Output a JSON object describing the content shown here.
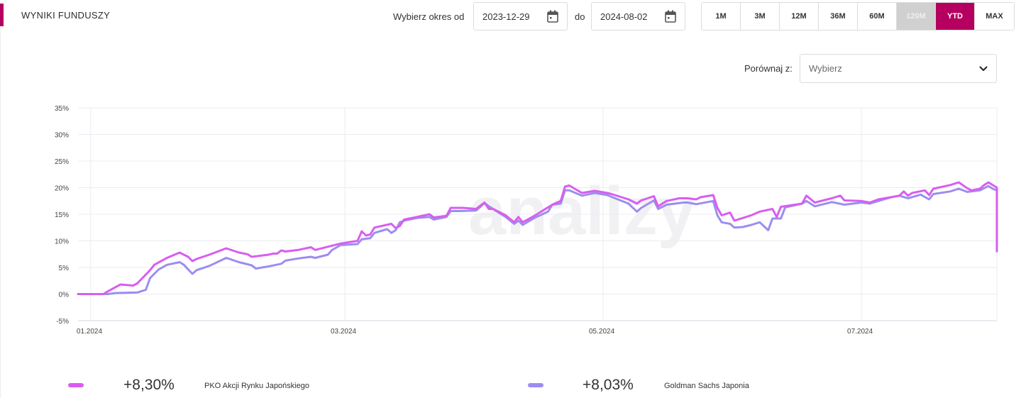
{
  "header": {
    "title": "WYNIKI FUNDUSZY",
    "from_label": "Wybierz okres od",
    "from_value": "2023-12-29",
    "to_label": "do",
    "to_value": "2024-08-02"
  },
  "periods": [
    {
      "label": "1M",
      "state": "normal"
    },
    {
      "label": "3M",
      "state": "normal"
    },
    {
      "label": "12M",
      "state": "normal"
    },
    {
      "label": "36M",
      "state": "normal"
    },
    {
      "label": "60M",
      "state": "normal"
    },
    {
      "label": "120M",
      "state": "disabled"
    },
    {
      "label": "YTD",
      "state": "active"
    },
    {
      "label": "MAX",
      "state": "normal"
    }
  ],
  "compare": {
    "label": "Porównaj z:",
    "placeholder": "Wybierz"
  },
  "watermark": "analizy",
  "colors": {
    "accent": "#b5005f",
    "series1": "#d85ef0",
    "series2": "#9b8ef0",
    "grid": "#ececf2",
    "axis": "#d5d5e0"
  },
  "legend": [
    {
      "value": "+8,30%",
      "name": "PKO Akcji Rynku Japońskiego"
    },
    {
      "value": "+8,03%",
      "name": "Goldman Sachs Japonia"
    }
  ],
  "chart_data": {
    "type": "line",
    "xlim": [
      "2023-12-29",
      "2024-08-02"
    ],
    "ylim": [
      -5,
      35
    ],
    "yticks": [
      -5,
      0,
      5,
      10,
      15,
      20,
      25,
      30,
      35
    ],
    "yticklabels": [
      "-5%",
      "0%",
      "5%",
      "10%",
      "15%",
      "20%",
      "25%",
      "30%",
      "35%"
    ],
    "xticks": [
      "2024-01-01",
      "2024-03-01",
      "2024-05-01",
      "2024-07-01"
    ],
    "xticklabels": [
      "01.2024",
      "03.2024",
      "05.2024",
      "07.2024"
    ],
    "grid": true,
    "legend_position": "bottom",
    "series": [
      {
        "name": "PKO Akcji Rynku Japońskiego",
        "color": "#d85ef0",
        "points": [
          [
            "2023-12-29",
            0.0
          ],
          [
            "2024-01-04",
            0.0
          ],
          [
            "2024-01-05",
            0.5
          ],
          [
            "2024-01-08",
            1.8
          ],
          [
            "2024-01-11",
            1.6
          ],
          [
            "2024-01-12",
            2.0
          ],
          [
            "2024-01-15",
            4.5
          ],
          [
            "2024-01-16",
            5.5
          ],
          [
            "2024-01-19",
            6.8
          ],
          [
            "2024-01-22",
            7.8
          ],
          [
            "2024-01-24",
            7.0
          ],
          [
            "2024-01-25",
            6.2
          ],
          [
            "2024-01-26",
            6.6
          ],
          [
            "2024-01-29",
            7.4
          ],
          [
            "2024-02-02",
            8.6
          ],
          [
            "2024-02-05",
            7.8
          ],
          [
            "2024-02-07",
            7.5
          ],
          [
            "2024-02-08",
            7.0
          ],
          [
            "2024-02-12",
            7.4
          ],
          [
            "2024-02-13",
            7.6
          ],
          [
            "2024-02-14",
            7.6
          ],
          [
            "2024-02-15",
            8.2
          ],
          [
            "2024-02-16",
            8.0
          ],
          [
            "2024-02-19",
            8.3
          ],
          [
            "2024-02-22",
            8.8
          ],
          [
            "2024-02-23",
            8.3
          ],
          [
            "2024-02-26",
            8.9
          ],
          [
            "2024-02-29",
            9.5
          ],
          [
            "2024-03-04",
            10.0
          ],
          [
            "2024-03-05",
            11.8
          ],
          [
            "2024-03-06",
            11.0
          ],
          [
            "2024-03-07",
            11.2
          ],
          [
            "2024-03-08",
            12.5
          ],
          [
            "2024-03-12",
            13.2
          ],
          [
            "2024-03-13",
            12.4
          ],
          [
            "2024-03-14",
            12.8
          ],
          [
            "2024-03-15",
            14.0
          ],
          [
            "2024-03-18",
            14.5
          ],
          [
            "2024-03-21",
            15.0
          ],
          [
            "2024-03-22",
            14.4
          ],
          [
            "2024-03-25",
            14.7
          ],
          [
            "2024-03-26",
            16.2
          ],
          [
            "2024-03-29",
            16.2
          ],
          [
            "2024-04-01",
            16.0
          ],
          [
            "2024-04-03",
            17.2
          ],
          [
            "2024-04-04",
            16.0
          ],
          [
            "2024-04-05",
            16.0
          ],
          [
            "2024-04-08",
            14.8
          ],
          [
            "2024-04-10",
            13.5
          ],
          [
            "2024-04-11",
            14.5
          ],
          [
            "2024-04-12",
            13.5
          ],
          [
            "2024-04-15",
            14.8
          ],
          [
            "2024-04-19",
            16.8
          ],
          [
            "2024-04-21",
            17.5
          ],
          [
            "2024-04-22",
            20.2
          ],
          [
            "2024-04-23",
            20.4
          ],
          [
            "2024-04-26",
            19.0
          ],
          [
            "2024-04-29",
            19.4
          ],
          [
            "2024-05-02",
            19.0
          ],
          [
            "2024-05-03",
            18.8
          ],
          [
            "2024-05-07",
            17.8
          ],
          [
            "2024-05-09",
            17.0
          ],
          [
            "2024-05-10",
            17.6
          ],
          [
            "2024-05-13",
            18.4
          ],
          [
            "2024-05-14",
            16.5
          ],
          [
            "2024-05-16",
            17.5
          ],
          [
            "2024-05-19",
            18.0
          ],
          [
            "2024-05-20",
            18.0
          ],
          [
            "2024-05-21",
            18.0
          ],
          [
            "2024-05-23",
            17.8
          ],
          [
            "2024-05-24",
            18.2
          ],
          [
            "2024-05-27",
            18.6
          ],
          [
            "2024-05-28",
            16.2
          ],
          [
            "2024-05-29",
            14.8
          ],
          [
            "2024-05-31",
            15.3
          ],
          [
            "2024-06-01",
            13.8
          ],
          [
            "2024-06-03",
            14.3
          ],
          [
            "2024-06-05",
            14.8
          ],
          [
            "2024-06-07",
            15.5
          ],
          [
            "2024-06-10",
            16.0
          ],
          [
            "2024-06-11",
            14.5
          ],
          [
            "2024-06-12",
            16.4
          ],
          [
            "2024-06-17",
            17.0
          ],
          [
            "2024-06-18",
            18.5
          ],
          [
            "2024-06-20",
            17.2
          ],
          [
            "2024-06-24",
            18.0
          ],
          [
            "2024-06-26",
            18.5
          ],
          [
            "2024-06-27",
            17.6
          ],
          [
            "2024-07-01",
            17.5
          ],
          [
            "2024-07-03",
            17.2
          ],
          [
            "2024-07-05",
            17.8
          ],
          [
            "2024-07-08",
            18.2
          ],
          [
            "2024-07-10",
            18.5
          ],
          [
            "2024-07-11",
            19.3
          ],
          [
            "2024-07-12",
            18.5
          ],
          [
            "2024-07-13",
            19.0
          ],
          [
            "2024-07-16",
            19.5
          ],
          [
            "2024-07-17",
            18.6
          ],
          [
            "2024-07-18",
            19.8
          ],
          [
            "2024-07-22",
            20.5
          ],
          [
            "2024-07-24",
            21.0
          ],
          [
            "2024-07-26",
            19.9
          ],
          [
            "2024-07-27",
            19.5
          ],
          [
            "2024-07-29",
            19.8
          ],
          [
            "2024-07-30",
            20.5
          ],
          [
            "2024-07-31",
            21.0
          ],
          [
            "2024-08-01",
            20.5
          ],
          [
            "2024-08-02",
            20.0
          ],
          [
            "2024-08-02",
            18.5
          ],
          [
            "2024-08-02",
            8.3
          ]
        ]
      },
      {
        "name": "Goldman Sachs Japonia",
        "color": "#9b8ef0",
        "points": [
          [
            "2023-12-29",
            0.0
          ],
          [
            "2024-01-05",
            0.0
          ],
          [
            "2024-01-07",
            0.2
          ],
          [
            "2024-01-12",
            0.3
          ],
          [
            "2024-01-14",
            0.8
          ],
          [
            "2024-01-15",
            3.0
          ],
          [
            "2024-01-17",
            4.6
          ],
          [
            "2024-01-19",
            5.5
          ],
          [
            "2024-01-22",
            6.0
          ],
          [
            "2024-01-23",
            5.5
          ],
          [
            "2024-01-25",
            3.8
          ],
          [
            "2024-01-26",
            4.5
          ],
          [
            "2024-01-29",
            5.3
          ],
          [
            "2024-02-02",
            6.8
          ],
          [
            "2024-02-05",
            6.0
          ],
          [
            "2024-02-08",
            5.4
          ],
          [
            "2024-02-09",
            4.8
          ],
          [
            "2024-02-12",
            5.2
          ],
          [
            "2024-02-15",
            5.7
          ],
          [
            "2024-02-16",
            6.3
          ],
          [
            "2024-02-19",
            6.7
          ],
          [
            "2024-02-22",
            7.0
          ],
          [
            "2024-02-23",
            6.8
          ],
          [
            "2024-02-26",
            7.4
          ],
          [
            "2024-02-27",
            8.3
          ],
          [
            "2024-02-29",
            9.2
          ],
          [
            "2024-03-04",
            9.4
          ],
          [
            "2024-03-05",
            10.3
          ],
          [
            "2024-03-07",
            10.5
          ],
          [
            "2024-03-08",
            11.5
          ],
          [
            "2024-03-11",
            12.2
          ],
          [
            "2024-03-12",
            11.5
          ],
          [
            "2024-03-13",
            12.0
          ],
          [
            "2024-03-14",
            13.5
          ],
          [
            "2024-03-15",
            13.8
          ],
          [
            "2024-03-18",
            14.3
          ],
          [
            "2024-03-21",
            14.5
          ],
          [
            "2024-03-22",
            14.0
          ],
          [
            "2024-03-25",
            14.5
          ],
          [
            "2024-03-26",
            15.6
          ],
          [
            "2024-03-28",
            15.6
          ],
          [
            "2024-04-01",
            15.7
          ],
          [
            "2024-04-03",
            17.1
          ],
          [
            "2024-04-05",
            16.0
          ],
          [
            "2024-04-08",
            14.5
          ],
          [
            "2024-04-10",
            13.2
          ],
          [
            "2024-04-11",
            13.8
          ],
          [
            "2024-04-12",
            13.0
          ],
          [
            "2024-04-15",
            14.4
          ],
          [
            "2024-04-18",
            15.5
          ],
          [
            "2024-04-19",
            16.8
          ],
          [
            "2024-04-21",
            17.0
          ],
          [
            "2024-04-22",
            19.5
          ],
          [
            "2024-04-23",
            19.5
          ],
          [
            "2024-04-26",
            18.5
          ],
          [
            "2024-04-29",
            19.0
          ],
          [
            "2024-05-02",
            18.6
          ],
          [
            "2024-05-07",
            17.0
          ],
          [
            "2024-05-09",
            15.5
          ],
          [
            "2024-05-10",
            16.2
          ],
          [
            "2024-05-13",
            17.6
          ],
          [
            "2024-05-14",
            16.0
          ],
          [
            "2024-05-16",
            16.8
          ],
          [
            "2024-05-20",
            17.2
          ],
          [
            "2024-05-21",
            17.2
          ],
          [
            "2024-05-23",
            16.9
          ],
          [
            "2024-05-27",
            17.5
          ],
          [
            "2024-05-28",
            14.8
          ],
          [
            "2024-05-29",
            13.5
          ],
          [
            "2024-05-31",
            13.2
          ],
          [
            "2024-06-01",
            12.5
          ],
          [
            "2024-06-03",
            12.6
          ],
          [
            "2024-06-05",
            13.0
          ],
          [
            "2024-06-07",
            13.5
          ],
          [
            "2024-06-09",
            12.0
          ],
          [
            "2024-06-10",
            14.2
          ],
          [
            "2024-06-12",
            14.2
          ],
          [
            "2024-06-13",
            16.3
          ],
          [
            "2024-06-17",
            17.0
          ],
          [
            "2024-06-18",
            17.5
          ],
          [
            "2024-06-20",
            16.5
          ],
          [
            "2024-06-24",
            17.3
          ],
          [
            "2024-06-27",
            16.8
          ],
          [
            "2024-07-01",
            17.2
          ],
          [
            "2024-07-03",
            17.0
          ],
          [
            "2024-07-05",
            17.5
          ],
          [
            "2024-07-08",
            18.2
          ],
          [
            "2024-07-10",
            18.5
          ],
          [
            "2024-07-12",
            18.0
          ],
          [
            "2024-07-15",
            18.7
          ],
          [
            "2024-07-17",
            17.8
          ],
          [
            "2024-07-18",
            18.8
          ],
          [
            "2024-07-22",
            19.3
          ],
          [
            "2024-07-24",
            19.8
          ],
          [
            "2024-07-26",
            19.2
          ],
          [
            "2024-07-29",
            19.5
          ],
          [
            "2024-07-31",
            20.3
          ],
          [
            "2024-08-01",
            19.8
          ],
          [
            "2024-08-02",
            19.5
          ],
          [
            "2024-08-02",
            17.5
          ],
          [
            "2024-08-02",
            8.0
          ]
        ]
      }
    ]
  }
}
